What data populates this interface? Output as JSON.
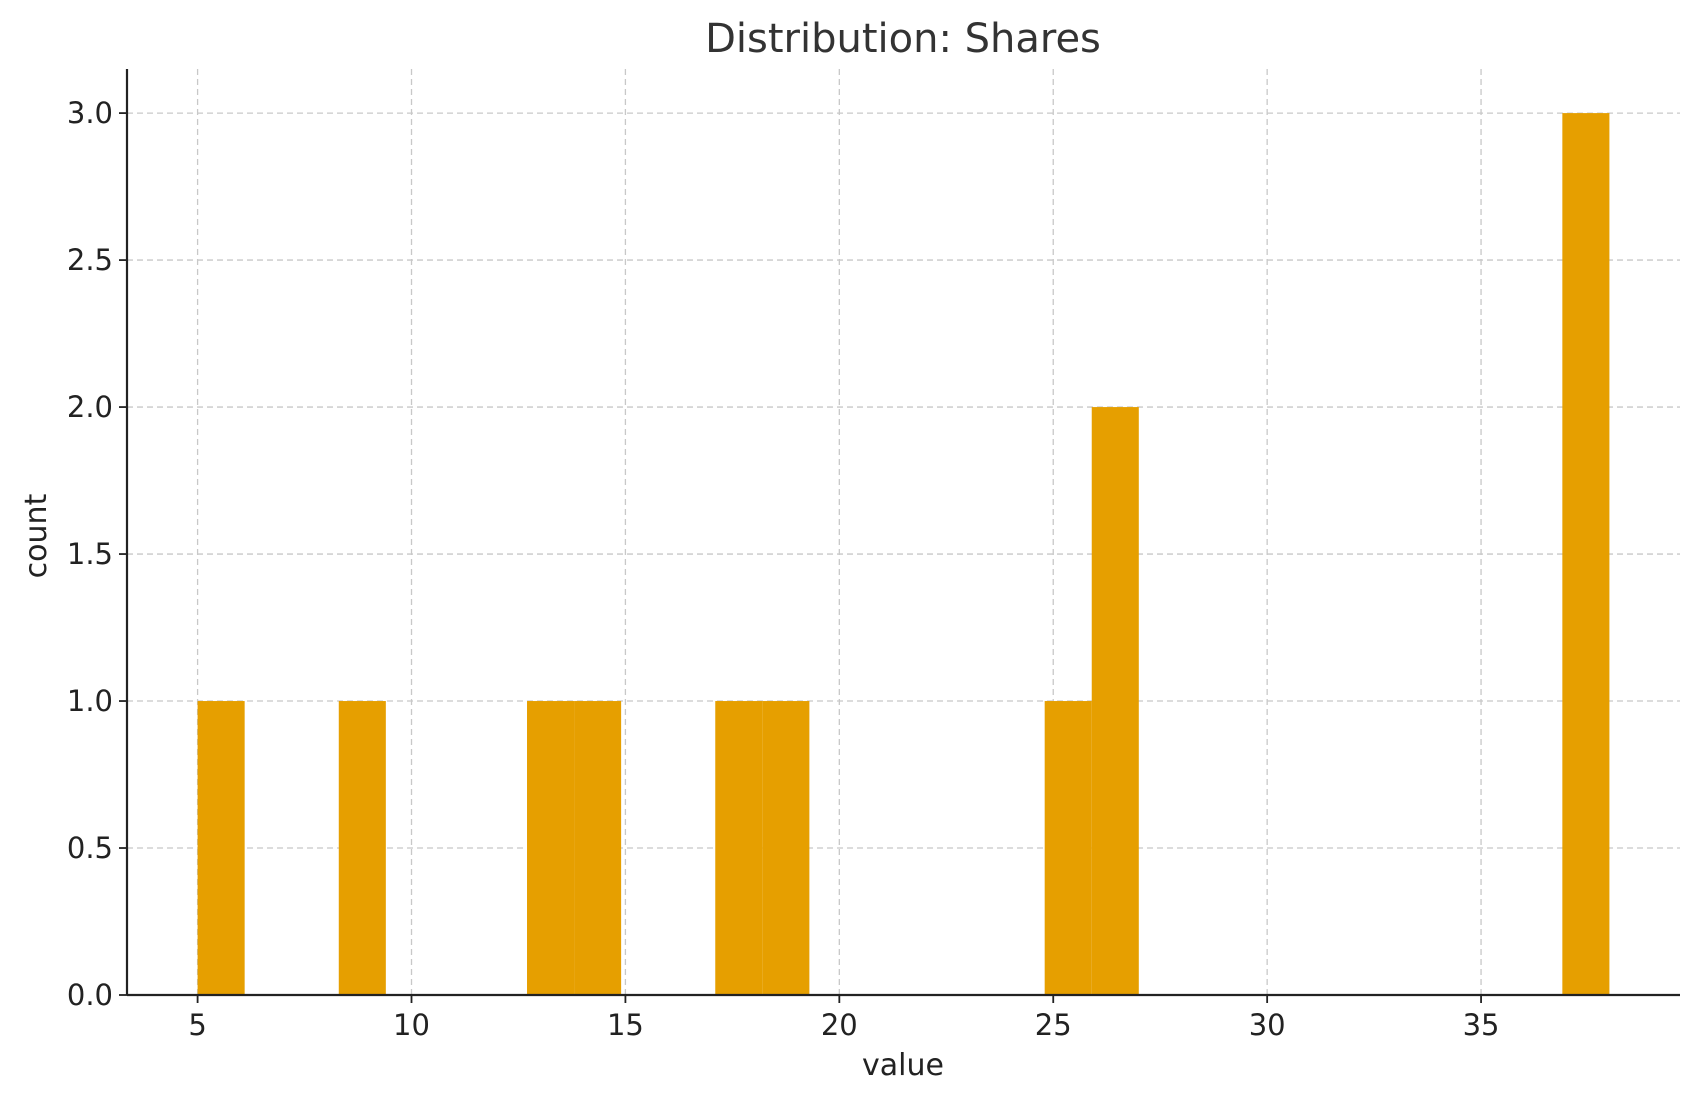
{
  "chart_data": {
    "type": "bar",
    "title": "Distribution: Shares",
    "xlabel": "value",
    "ylabel": "count",
    "xlim": [
      3.35,
      39.65
    ],
    "ylim": [
      0,
      3.15
    ],
    "x_ticks": [
      5,
      10,
      15,
      20,
      25,
      30,
      35
    ],
    "y_ticks": [
      0.0,
      0.5,
      1.0,
      1.5,
      2.0,
      2.5,
      3.0
    ],
    "grid": true,
    "color": "#E69F00",
    "bin_width": 1.1,
    "bins": [
      {
        "start": 5.0,
        "end": 6.1,
        "count": 1
      },
      {
        "start": 8.3,
        "end": 9.4,
        "count": 1
      },
      {
        "start": 12.7,
        "end": 13.8,
        "count": 1
      },
      {
        "start": 13.8,
        "end": 14.9,
        "count": 1
      },
      {
        "start": 17.1,
        "end": 18.2,
        "count": 1
      },
      {
        "start": 18.2,
        "end": 19.3,
        "count": 1
      },
      {
        "start": 24.8,
        "end": 25.9,
        "count": 1
      },
      {
        "start": 25.9,
        "end": 27.0,
        "count": 2
      },
      {
        "start": 36.9,
        "end": 38.0,
        "count": 3
      }
    ]
  }
}
